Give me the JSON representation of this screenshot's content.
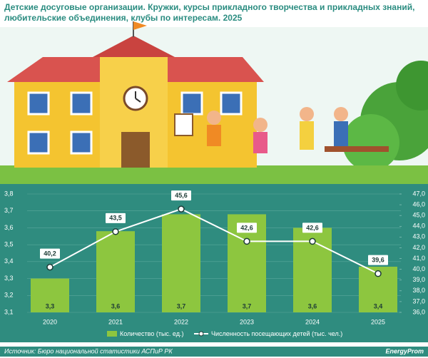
{
  "chart_data": {
    "type": "bar",
    "title": "Детские досуговые организации. Кружки, курсы прикладного творчества и прикладных знаний, любительские объединения, клубы по интересам. 2025",
    "categories": [
      "2020",
      "2021",
      "2022",
      "2023",
      "2024",
      "2025"
    ],
    "series": [
      {
        "name": "Количество (тыс. ед.)",
        "type": "bar",
        "color": "#8dc63f",
        "values": [
          3.3,
          3.58,
          3.68,
          3.68,
          3.6,
          3.37
        ],
        "value_labels": [
          "3,3",
          "3,6",
          "3,7",
          "3,7",
          "3,6",
          "3,4"
        ]
      },
      {
        "name": "Численность посещающих детей (тыс. чел.)",
        "type": "line",
        "axis": "y2",
        "color": "#ffffff",
        "values": [
          40.2,
          43.5,
          45.6,
          42.6,
          42.6,
          39.6
        ],
        "value_labels": [
          "40,2",
          "43,5",
          "45,6",
          "42,6",
          "42,6",
          "39,6"
        ]
      }
    ],
    "ylim": [
      3.1,
      3.8
    ],
    "yticks": [
      {
        "value": 3.1,
        "label": "3,1"
      },
      {
        "value": 3.2,
        "label": "3,2"
      },
      {
        "value": 3.3,
        "label": "3,3"
      },
      {
        "value": 3.4,
        "label": "3,4"
      },
      {
        "value": 3.5,
        "label": "3,5"
      },
      {
        "value": 3.6,
        "label": "3,6"
      },
      {
        "value": 3.7,
        "label": "3,7"
      },
      {
        "value": 3.8,
        "label": "3,8"
      }
    ],
    "y2lim": [
      36,
      47
    ],
    "y2ticks": [
      {
        "value": 36,
        "label": "36,0"
      },
      {
        "value": 37,
        "label": "37,0"
      },
      {
        "value": 38,
        "label": "38,0"
      },
      {
        "value": 39,
        "label": "39,0"
      },
      {
        "value": 40,
        "label": "40,0"
      },
      {
        "value": 41,
        "label": "41,0"
      },
      {
        "value": 42,
        "label": "42,0"
      },
      {
        "value": 43,
        "label": "43,0"
      },
      {
        "value": 44,
        "label": "44,0"
      },
      {
        "value": 45,
        "label": "45,0"
      },
      {
        "value": 46,
        "label": "46,0"
      },
      {
        "value": 47,
        "label": "47,0"
      }
    ],
    "grid": true,
    "source": "Источник: Бюро национальной статистики АСПиР РК",
    "logo": "EnergyProm"
  }
}
